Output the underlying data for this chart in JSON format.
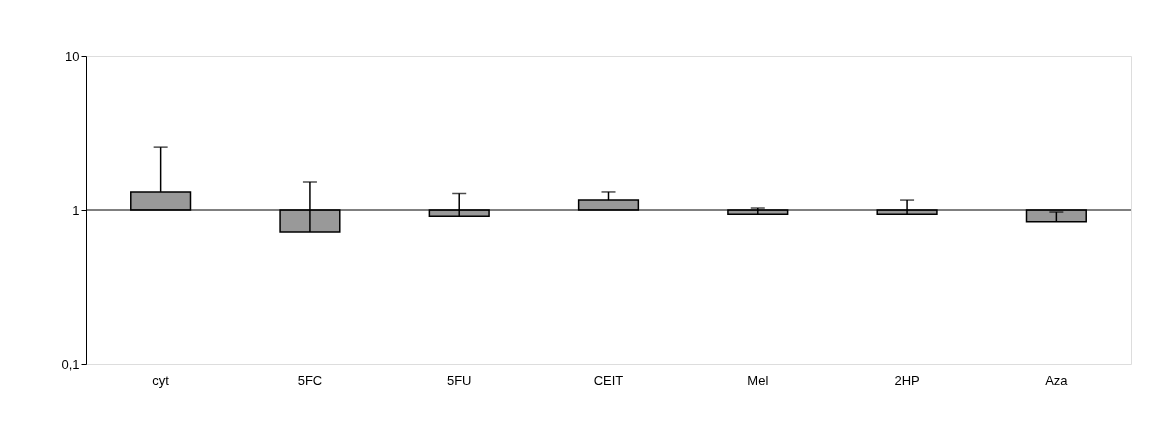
{
  "chart_data": {
    "type": "bar",
    "categories": [
      "cyt",
      "5FC",
      "5FU",
      "CEIT",
      "Mel",
      "2HP",
      "Aza"
    ],
    "base": [
      1,
      1,
      1,
      1,
      1,
      1,
      1
    ],
    "values": [
      0.31,
      -0.28,
      -0.09,
      0.16,
      -0.06,
      -0.06,
      -0.16
    ],
    "errors": [
      [
        1.31,
        2.56
      ],
      [
        0.72,
        1.52
      ],
      [
        0.91,
        1.28
      ],
      [
        1.16,
        1.31
      ],
      [
        0.94,
        1.03
      ],
      [
        0.94,
        1.16
      ],
      [
        0.84,
        0.97
      ]
    ],
    "color": "#999999",
    "log": true,
    "ylim": [
      0.1,
      10
    ],
    "yticks": [
      {
        "value": 0.1,
        "label": "0,1"
      },
      1,
      10
    ],
    "grid": false,
    "ref_lines": [
      {
        "axis": "y",
        "value": 1,
        "color": "#000000"
      }
    ]
  }
}
